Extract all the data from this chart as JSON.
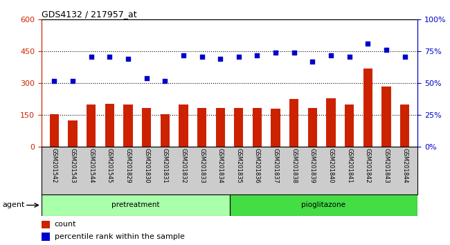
{
  "title": "GDS4132 / 217957_at",
  "categories": [
    "GSM201542",
    "GSM201543",
    "GSM201544",
    "GSM201545",
    "GSM201829",
    "GSM201830",
    "GSM201831",
    "GSM201832",
    "GSM201833",
    "GSM201834",
    "GSM201835",
    "GSM201836",
    "GSM201837",
    "GSM201838",
    "GSM201839",
    "GSM201840",
    "GSM201841",
    "GSM201842",
    "GSM201843",
    "GSM201844"
  ],
  "counts": [
    155,
    125,
    200,
    205,
    200,
    185,
    155,
    200,
    185,
    185,
    185,
    185,
    180,
    225,
    185,
    230,
    200,
    370,
    285,
    200
  ],
  "percentiles": [
    52,
    52,
    71,
    71,
    69,
    54,
    52,
    72,
    71,
    69,
    71,
    72,
    74,
    74,
    67,
    72,
    71,
    81,
    76,
    71
  ],
  "pretreatment_count": 10,
  "count_color": "#cc2200",
  "percentile_color": "#0000cc",
  "left_yticks": [
    0,
    150,
    300,
    450,
    600
  ],
  "right_yticks": [
    0,
    25,
    50,
    75,
    100
  ],
  "right_ytick_labels": [
    "0%",
    "25%",
    "50%",
    "75%",
    "100%"
  ],
  "hlines": [
    150,
    300,
    450
  ],
  "group1_label": "pretreatment",
  "group2_label": "pioglitazone",
  "agent_label": "agent",
  "legend_count": "count",
  "legend_pct": "percentile rank within the sample",
  "bar_width": 0.5,
  "pre_color": "#aaffaa",
  "pio_color": "#44dd44"
}
